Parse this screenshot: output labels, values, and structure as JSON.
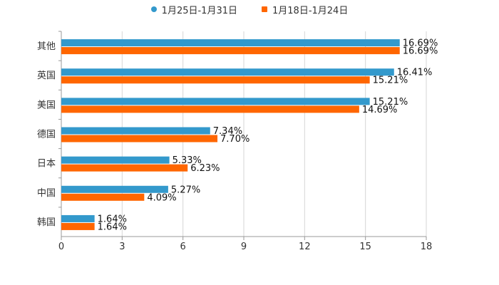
{
  "chart_data": {
    "type": "bar",
    "orientation": "horizontal",
    "title": "",
    "xlabel": "",
    "ylabel": "",
    "xlim": [
      0,
      18
    ],
    "x_ticks": [
      0,
      3,
      6,
      9,
      12,
      15,
      18
    ],
    "grid": true,
    "legend_position": "top-center",
    "categories": [
      "其他",
      "英国",
      "美国",
      "德国",
      "日本",
      "中国",
      "韩国"
    ],
    "series": [
      {
        "name": "1月25日-1月31日",
        "color": "#3399cc",
        "values": [
          16.69,
          16.41,
          15.21,
          7.34,
          5.33,
          5.27,
          1.64
        ],
        "labels": [
          "16.69%",
          "16.41%",
          "15.21%",
          "7.34%",
          "5.33%",
          "5.27%",
          "1.64%"
        ]
      },
      {
        "name": "1月18日-1月24日",
        "color": "#ff6600",
        "values": [
          16.69,
          15.21,
          14.69,
          7.7,
          6.23,
          4.09,
          1.64
        ],
        "labels": [
          "16.69%",
          "15.21%",
          "14.69%",
          "7.70%",
          "6.23%",
          "4.09%",
          "1.64%"
        ]
      }
    ]
  }
}
